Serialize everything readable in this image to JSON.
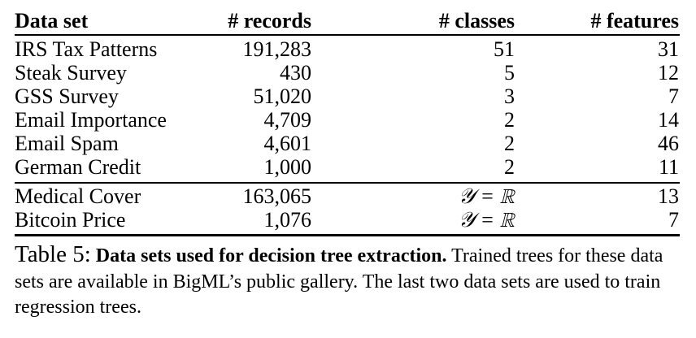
{
  "table": {
    "headers": [
      "Data set",
      "# records",
      "# classes",
      "# features"
    ],
    "rows": [
      [
        "IRS Tax Patterns",
        "191,283",
        "51",
        "31"
      ],
      [
        "Steak Survey",
        "430",
        "5",
        "12"
      ],
      [
        "GSS Survey",
        "51,020",
        "3",
        "7"
      ],
      [
        "Email Importance",
        "4,709",
        "2",
        "14"
      ],
      [
        "Email Spam",
        "4,601",
        "2",
        "46"
      ],
      [
        "German Credit",
        "1,000",
        "2",
        "11"
      ]
    ],
    "regression_rows": [
      [
        "Medical Cover",
        "163,065",
        "𝒴 = ℝ",
        "13"
      ],
      [
        "Bitcoin Price",
        "1,076",
        "𝒴 = ℝ",
        "7"
      ]
    ]
  },
  "caption": {
    "label": "Table 5:",
    "title": "Data sets used for decision tree extraction.",
    "text": "Trained trees for these data sets are available in BigML’s public gallery. The last two data sets are used to train regression trees."
  }
}
